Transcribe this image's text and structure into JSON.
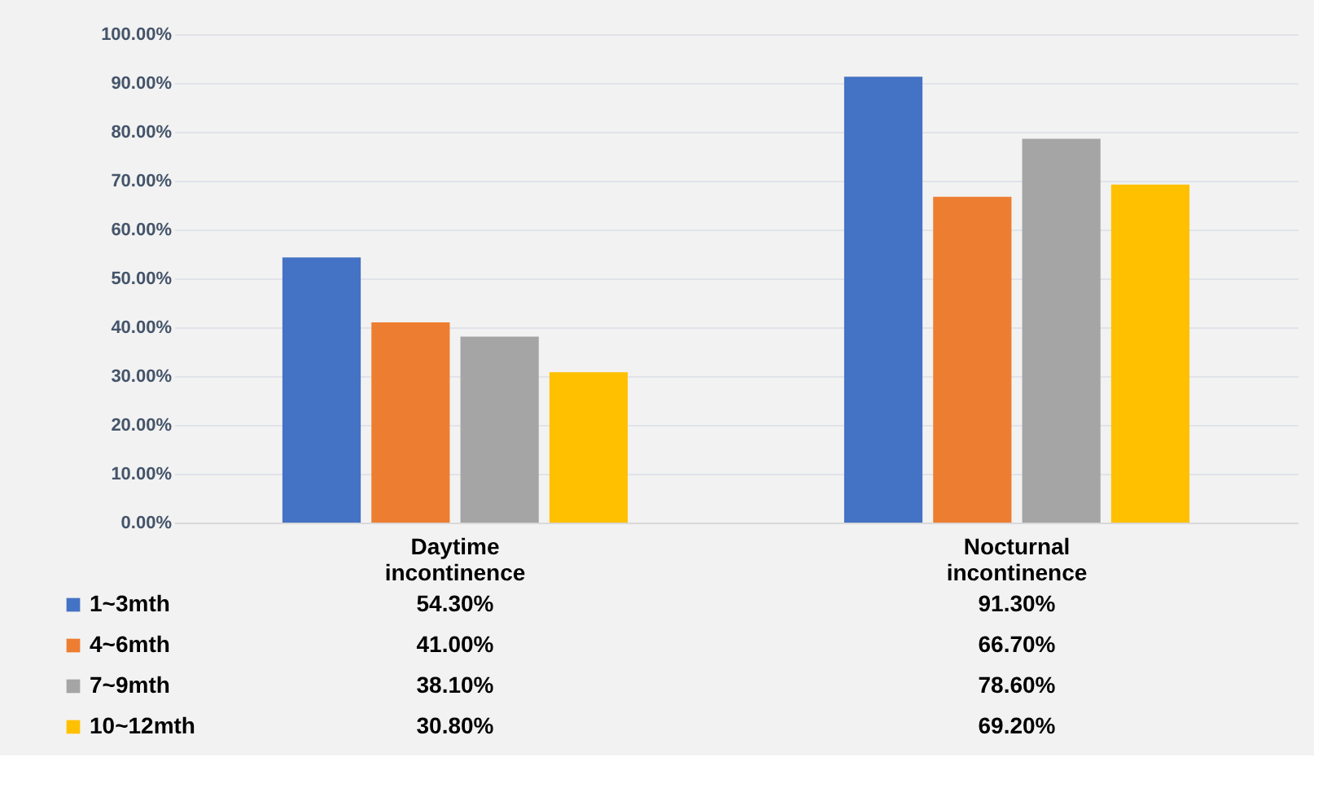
{
  "chart_data": {
    "type": "bar",
    "categories": [
      "Daytime incontinence",
      "Nocturnal incontinence"
    ],
    "series": [
      {
        "name": "1~3mth",
        "color": "#4472c4",
        "values": [
          54.3,
          91.3
        ],
        "value_labels": [
          "54.30%",
          "91.30%"
        ]
      },
      {
        "name": "4~6mth",
        "color": "#ed7d31",
        "values": [
          41.0,
          66.7
        ],
        "value_labels": [
          "41.00%",
          "66.70%"
        ]
      },
      {
        "name": "7~9mth",
        "color": "#a5a5a5",
        "values": [
          38.1,
          78.6
        ],
        "value_labels": [
          "38.10%",
          "78.60%"
        ]
      },
      {
        "name": "10~12mth",
        "color": "#ffc000",
        "values": [
          30.8,
          69.2
        ],
        "value_labels": [
          "30.80%",
          "69.20%"
        ]
      }
    ],
    "ylim": [
      0,
      100
    ],
    "yticks": [
      {
        "value": 0,
        "label": "0.00%"
      },
      {
        "value": 10,
        "label": "10.00%"
      },
      {
        "value": 20,
        "label": "20.00%"
      },
      {
        "value": 30,
        "label": "30.00%"
      },
      {
        "value": 40,
        "label": "40.00%"
      },
      {
        "value": 50,
        "label": "50.00%"
      },
      {
        "value": 60,
        "label": "60.00%"
      },
      {
        "value": 70,
        "label": "70.00%"
      },
      {
        "value": 80,
        "label": "80.00%"
      },
      {
        "value": 90,
        "label": "90.00%"
      },
      {
        "value": 100,
        "label": "100.00%"
      }
    ],
    "grid": "y",
    "legend": "bottom left"
  }
}
